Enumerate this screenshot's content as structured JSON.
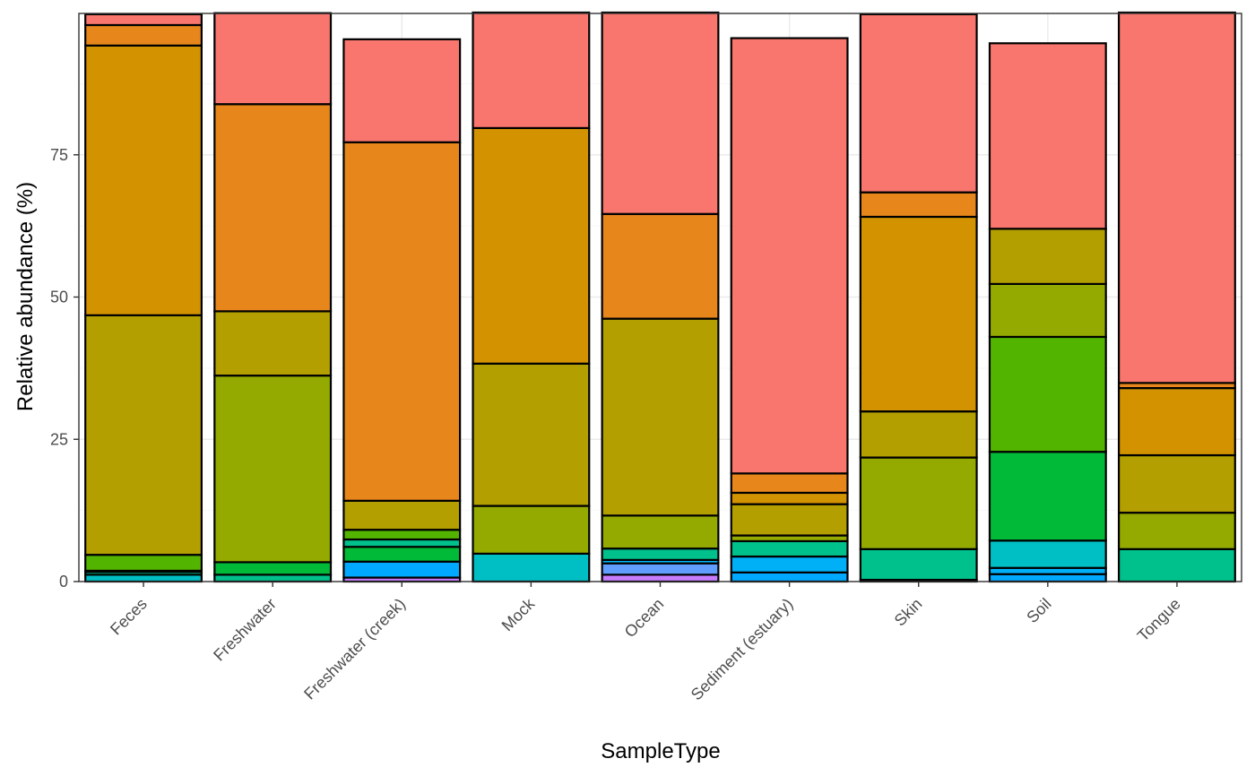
{
  "chart_data": {
    "type": "bar",
    "stacked": true,
    "xlabel": "SampleType",
    "ylabel": "Relative abundance (%)",
    "ylim": [
      0,
      100
    ],
    "yticks": [
      0,
      25,
      50,
      75
    ],
    "ytick_labels": [
      "0",
      "25",
      "50",
      "75"
    ],
    "grid": true,
    "legend": "none",
    "categories": [
      "Feces",
      "Freshwater",
      "Freshwater (creek)",
      "Mock",
      "Ocean",
      "Sediment (estuary)",
      "Skin",
      "Soil",
      "Tongue"
    ],
    "stacks": [
      [
        {
          "color": "#00BFC4",
          "value": 1.2
        },
        {
          "color": "#00C08B",
          "value": 0.5
        },
        {
          "color": "#00BA38",
          "value": 0.2
        },
        {
          "color": "#53B400",
          "value": 2.8
        },
        {
          "color": "#B3A000",
          "value": 42.1
        },
        {
          "color": "#D39200",
          "value": 47.4
        },
        {
          "color": "#E7861B",
          "value": 3.6
        },
        {
          "color": "#F8766D",
          "value": 1.9
        }
      ],
      [
        {
          "color": "#00C08B",
          "value": 1.2
        },
        {
          "color": "#00BA38",
          "value": 2.2
        },
        {
          "color": "#94AA00",
          "value": 32.8
        },
        {
          "color": "#B3A000",
          "value": 11.3
        },
        {
          "color": "#E7861B",
          "value": 36.4
        },
        {
          "color": "#F8766D",
          "value": 16.0
        }
      ],
      [
        {
          "color": "#C77CFF",
          "value": 0.7
        },
        {
          "color": "#00A9FF",
          "value": 2.8
        },
        {
          "color": "#00BA38",
          "value": 2.6
        },
        {
          "color": "#00C08B",
          "value": 1.3
        },
        {
          "color": "#53B400",
          "value": 1.7
        },
        {
          "color": "#B3A000",
          "value": 5.1
        },
        {
          "color": "#E7861B",
          "value": 63.0
        },
        {
          "color": "#F8766D",
          "value": 18.1
        }
      ],
      [
        {
          "color": "#00BFC4",
          "value": 4.9
        },
        {
          "color": "#94AA00",
          "value": 8.4
        },
        {
          "color": "#B3A000",
          "value": 25.0
        },
        {
          "color": "#D39200",
          "value": 41.4
        },
        {
          "color": "#F8766D",
          "value": 20.3
        }
      ],
      [
        {
          "color": "#C77CFF",
          "value": 1.2
        },
        {
          "color": "#619CFF",
          "value": 2.0
        },
        {
          "color": "#00B0F6",
          "value": 0.6
        },
        {
          "color": "#00C08B",
          "value": 2.0
        },
        {
          "color": "#94AA00",
          "value": 5.8
        },
        {
          "color": "#B3A000",
          "value": 34.6
        },
        {
          "color": "#E7861B",
          "value": 18.4
        },
        {
          "color": "#F8766D",
          "value": 35.4
        }
      ],
      [
        {
          "color": "#00A9FF",
          "value": 1.6
        },
        {
          "color": "#00B0F6",
          "value": 2.8
        },
        {
          "color": "#00C08B",
          "value": 2.7
        },
        {
          "color": "#94AA00",
          "value": 1.0
        },
        {
          "color": "#B3A000",
          "value": 5.5
        },
        {
          "color": "#D39200",
          "value": 2.0
        },
        {
          "color": "#E7861B",
          "value": 3.4
        },
        {
          "color": "#F8766D",
          "value": 76.5
        }
      ],
      [
        {
          "color": "#00BFC4",
          "value": 0.3
        },
        {
          "color": "#00C08B",
          "value": 5.4
        },
        {
          "color": "#94AA00",
          "value": 16.1
        },
        {
          "color": "#B3A000",
          "value": 8.1
        },
        {
          "color": "#D39200",
          "value": 34.2
        },
        {
          "color": "#E7861B",
          "value": 4.3
        },
        {
          "color": "#F8766D",
          "value": 31.3
        }
      ],
      [
        {
          "color": "#00A9FF",
          "value": 1.3
        },
        {
          "color": "#00B0F6",
          "value": 1.1
        },
        {
          "color": "#00BFC4",
          "value": 4.8
        },
        {
          "color": "#00BA38",
          "value": 15.6
        },
        {
          "color": "#53B400",
          "value": 20.2
        },
        {
          "color": "#94AA00",
          "value": 9.3
        },
        {
          "color": "#B3A000",
          "value": 9.7
        },
        {
          "color": "#F8766D",
          "value": 32.6
        }
      ],
      [
        {
          "color": "#00C08B",
          "value": 5.7
        },
        {
          "color": "#94AA00",
          "value": 6.4
        },
        {
          "color": "#B3A000",
          "value": 10.1
        },
        {
          "color": "#D39200",
          "value": 11.8
        },
        {
          "color": "#E7861B",
          "value": 0.9
        },
        {
          "color": "#F8766D",
          "value": 65.1
        }
      ]
    ]
  }
}
